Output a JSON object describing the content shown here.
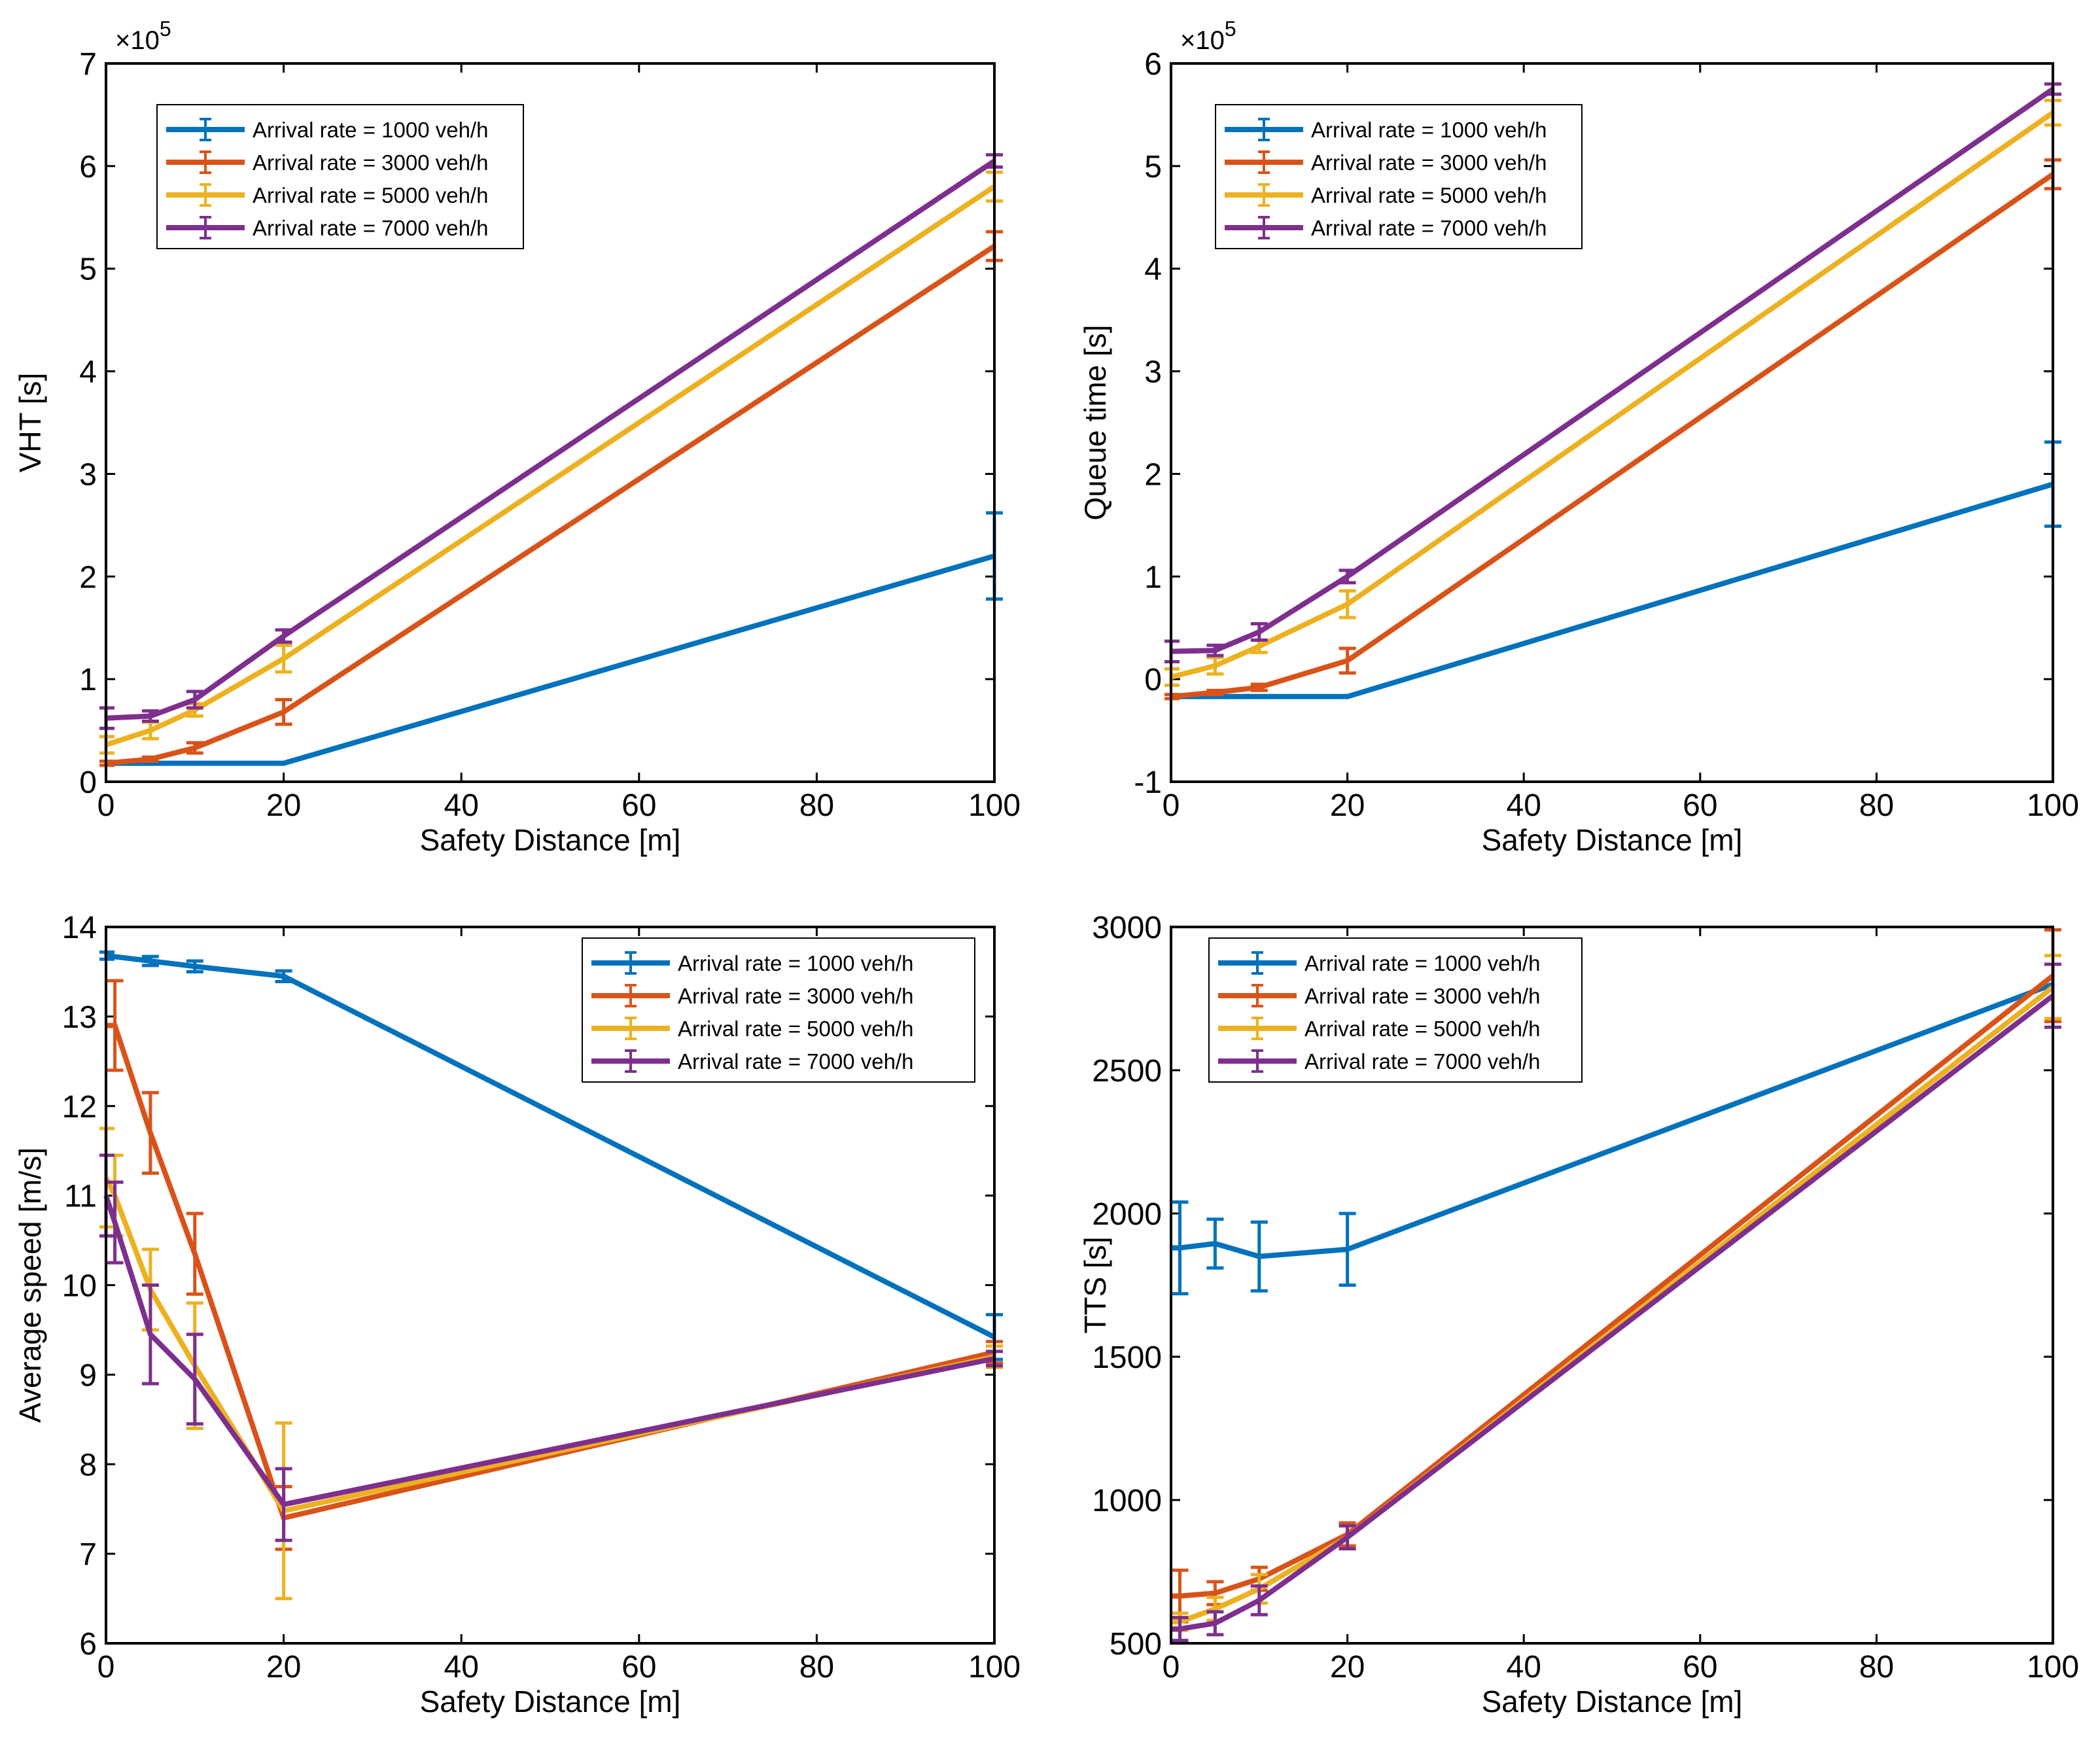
{
  "colors": {
    "s1000": "#0072BD",
    "s3000": "#D95319",
    "s5000": "#EDB120",
    "s7000": "#7E2F8E"
  },
  "chart_data": [
    {
      "type": "line",
      "id": "vht",
      "xlabel": "Safety Distance [m]",
      "ylabel": "VHT [s]",
      "exponent_label": "×10",
      "exponent_power": "5",
      "xlim": [
        0,
        100
      ],
      "ylim": [
        0,
        7
      ],
      "xticks": [
        0,
        20,
        40,
        60,
        80,
        100
      ],
      "xtick_labels": [
        "0",
        "20",
        "40",
        "60",
        "80",
        "100"
      ],
      "yticks": [
        0,
        1,
        2,
        3,
        4,
        5,
        6,
        7
      ],
      "ytick_labels": [
        "0",
        "1",
        "2",
        "3",
        "4",
        "5",
        "6",
        "7"
      ],
      "legend_position": "top-left",
      "series": [
        {
          "name": "Arrival rate = 1000 veh/h",
          "color_key": "s1000",
          "x": [
            0,
            20,
            100
          ],
          "y": [
            0.18,
            0.18,
            2.2
          ],
          "err": [
            0,
            0,
            0.42
          ],
          "errbar_x": [
            100
          ]
        },
        {
          "name": "Arrival rate = 3000 veh/h",
          "color_key": "s3000",
          "x": [
            0,
            5,
            10,
            20,
            100
          ],
          "y": [
            0.18,
            0.22,
            0.33,
            0.68,
            5.22
          ],
          "err": [
            0.02,
            0.02,
            0.05,
            0.12,
            0.14
          ],
          "errbar_x": [
            0,
            5,
            10,
            20,
            100
          ]
        },
        {
          "name": "Arrival rate = 5000 veh/h",
          "color_key": "s5000",
          "x": [
            0,
            5,
            10,
            20,
            100
          ],
          "y": [
            0.36,
            0.5,
            0.7,
            1.2,
            5.8
          ],
          "err": [
            0.08,
            0.08,
            0.06,
            0.13,
            0.14
          ],
          "errbar_x": [
            0,
            5,
            10,
            20,
            100
          ]
        },
        {
          "name": "Arrival rate = 7000 veh/h",
          "color_key": "s7000",
          "x": [
            0,
            5,
            10,
            20,
            100
          ],
          "y": [
            0.62,
            0.64,
            0.8,
            1.42,
            6.05
          ],
          "err": [
            0.1,
            0.05,
            0.08,
            0.06,
            0.06
          ],
          "errbar_x": [
            0,
            5,
            10,
            20,
            100
          ]
        }
      ],
      "legend": [
        "Arrival rate = 1000 veh/h",
        "Arrival rate = 3000 veh/h",
        "Arrival rate = 5000 veh/h",
        "Arrival rate = 7000 veh/h"
      ]
    },
    {
      "type": "line",
      "id": "queue",
      "xlabel": "Safety Distance [m]",
      "ylabel": "Queue time [s]",
      "exponent_label": "×10",
      "exponent_power": "5",
      "xlim": [
        0,
        100
      ],
      "ylim": [
        -1,
        6
      ],
      "xticks": [
        0,
        20,
        40,
        60,
        80,
        100
      ],
      "xtick_labels": [
        "0",
        "20",
        "40",
        "60",
        "80",
        "100"
      ],
      "yticks": [
        -1,
        0,
        1,
        2,
        3,
        4,
        5,
        6
      ],
      "ytick_labels": [
        "-1",
        "0",
        "1",
        "2",
        "3",
        "4",
        "5",
        "6"
      ],
      "legend_position": "top-left",
      "series": [
        {
          "name": "Arrival rate = 1000 veh/h",
          "color_key": "s1000",
          "x": [
            0,
            20,
            100
          ],
          "y": [
            -0.17,
            -0.17,
            1.9
          ],
          "err": [
            0,
            0,
            0.41
          ],
          "errbar_x": [
            100
          ]
        },
        {
          "name": "Arrival rate = 3000 veh/h",
          "color_key": "s3000",
          "x": [
            0,
            5,
            10,
            20,
            100
          ],
          "y": [
            -0.17,
            -0.13,
            -0.08,
            0.18,
            4.92
          ],
          "err": [
            0.02,
            0.02,
            0.03,
            0.12,
            0.14
          ],
          "errbar_x": [
            0,
            5,
            10,
            20,
            100
          ]
        },
        {
          "name": "Arrival rate = 5000 veh/h",
          "color_key": "s5000",
          "x": [
            0,
            5,
            10,
            20,
            100
          ],
          "y": [
            0.02,
            0.13,
            0.32,
            0.73,
            5.52
          ],
          "err": [
            0.08,
            0.08,
            0.06,
            0.13,
            0.12
          ],
          "errbar_x": [
            0,
            5,
            10,
            20,
            100
          ]
        },
        {
          "name": "Arrival rate = 7000 veh/h",
          "color_key": "s7000",
          "x": [
            0,
            5,
            10,
            20,
            100
          ],
          "y": [
            0.27,
            0.28,
            0.46,
            1.0,
            5.75
          ],
          "err": [
            0.1,
            0.05,
            0.08,
            0.06,
            0.05
          ],
          "errbar_x": [
            0,
            5,
            10,
            20,
            100
          ]
        }
      ],
      "legend": [
        "Arrival rate = 1000 veh/h",
        "Arrival rate = 3000 veh/h",
        "Arrival rate = 5000 veh/h",
        "Arrival rate = 7000 veh/h"
      ]
    },
    {
      "type": "line",
      "id": "speed",
      "xlabel": "Safety Distance [m]",
      "ylabel": "Average speed [m/s]",
      "xlim": [
        0,
        100
      ],
      "ylim": [
        6,
        14
      ],
      "xticks": [
        0,
        20,
        40,
        60,
        80,
        100
      ],
      "xtick_labels": [
        "0",
        "20",
        "40",
        "60",
        "80",
        "100"
      ],
      "yticks": [
        6,
        7,
        8,
        9,
        10,
        11,
        12,
        13,
        14
      ],
      "ytick_labels": [
        "6",
        "7",
        "8",
        "9",
        "10",
        "11",
        "12",
        "13",
        "14"
      ],
      "legend_position": "top-right",
      "series": [
        {
          "name": "Arrival rate = 1000 veh/h",
          "color_key": "s1000",
          "x": [
            0,
            5,
            10,
            20,
            100
          ],
          "y": [
            13.68,
            13.62,
            13.56,
            13.45,
            9.42
          ],
          "err": [
            0.04,
            0.05,
            0.06,
            0.06,
            0.25
          ],
          "errbar_x": [
            0,
            5,
            10,
            20,
            100
          ]
        },
        {
          "name": "Arrival rate = 3000 veh/h",
          "color_key": "s3000",
          "x": [
            0,
            1,
            5,
            10,
            20,
            100
          ],
          "y": [
            12.9,
            12.9,
            11.7,
            10.35,
            7.4,
            9.25
          ],
          "err": [
            0.62,
            0.5,
            0.45,
            0.45,
            0.35,
            0.12
          ],
          "errbar_x": [
            1,
            5,
            10,
            20,
            100
          ]
        },
        {
          "name": "Arrival rate = 5000 veh/h",
          "color_key": "s5000",
          "x": [
            0,
            1,
            5,
            10,
            20,
            100
          ],
          "y": [
            11.2,
            11.0,
            9.95,
            9.1,
            7.48,
            9.2
          ],
          "err": [
            0.55,
            0.45,
            0.45,
            0.7,
            0.98,
            0.12
          ],
          "errbar_x": [
            0,
            1,
            5,
            10,
            20,
            100
          ]
        },
        {
          "name": "Arrival rate = 7000 veh/h",
          "color_key": "s7000",
          "x": [
            0,
            1,
            5,
            10,
            20,
            100
          ],
          "y": [
            11.0,
            10.7,
            9.45,
            8.95,
            7.55,
            9.18
          ],
          "err": [
            0.45,
            0.45,
            0.55,
            0.5,
            0.4,
            0.08
          ],
          "errbar_x": [
            0,
            1,
            5,
            10,
            20,
            100
          ]
        }
      ],
      "legend": [
        "Arrival rate = 1000 veh/h",
        "Arrival rate = 3000 veh/h",
        "Arrival rate = 5000 veh/h",
        "Arrival rate = 7000 veh/h"
      ]
    },
    {
      "type": "line",
      "id": "tts",
      "xlabel": "Safety Distance [m]",
      "ylabel": "TTS [s]",
      "xlim": [
        0,
        100
      ],
      "ylim": [
        500,
        3000
      ],
      "xticks": [
        0,
        20,
        40,
        60,
        80,
        100
      ],
      "xtick_labels": [
        "0",
        "20",
        "40",
        "60",
        "80",
        "100"
      ],
      "yticks": [
        500,
        1000,
        1500,
        2000,
        2500,
        3000
      ],
      "ytick_labels": [
        "500",
        "1000",
        "1500",
        "2000",
        "2500",
        "3000"
      ],
      "legend_position": "top-left",
      "series": [
        {
          "name": "Arrival rate = 1000 veh/h",
          "color_key": "s1000",
          "x": [
            0,
            1,
            5,
            10,
            20,
            100
          ],
          "y": [
            1880,
            1880,
            1895,
            1850,
            1875,
            2800
          ],
          "err": [
            160,
            160,
            85,
            120,
            125,
            30
          ],
          "errbar_x": [
            1,
            5,
            10,
            20
          ]
        },
        {
          "name": "Arrival rate = 3000 veh/h",
          "color_key": "s3000",
          "x": [
            0,
            1,
            5,
            10,
            20,
            100
          ],
          "y": [
            665,
            665,
            675,
            725,
            880,
            2830
          ],
          "err": [
            90,
            90,
            40,
            40,
            40,
            160
          ],
          "errbar_x": [
            1,
            5,
            10,
            20,
            100
          ]
        },
        {
          "name": "Arrival rate = 5000 veh/h",
          "color_key": "s5000",
          "x": [
            0,
            1,
            5,
            10,
            20,
            100
          ],
          "y": [
            575,
            575,
            620,
            690,
            870,
            2790
          ],
          "err": [
            30,
            30,
            40,
            50,
            40,
            110
          ],
          "errbar_x": [
            1,
            5,
            10,
            20,
            100
          ]
        },
        {
          "name": "Arrival rate = 7000 veh/h",
          "color_key": "s7000",
          "x": [
            0,
            1,
            5,
            10,
            20,
            100
          ],
          "y": [
            550,
            550,
            570,
            650,
            870,
            2760
          ],
          "err": [
            40,
            40,
            40,
            50,
            40,
            110
          ],
          "errbar_x": [
            1,
            5,
            10,
            20,
            100
          ]
        }
      ],
      "legend": [
        "Arrival rate = 1000 veh/h",
        "Arrival rate = 3000 veh/h",
        "Arrival rate = 5000 veh/h",
        "Arrival rate = 7000 veh/h"
      ]
    }
  ]
}
